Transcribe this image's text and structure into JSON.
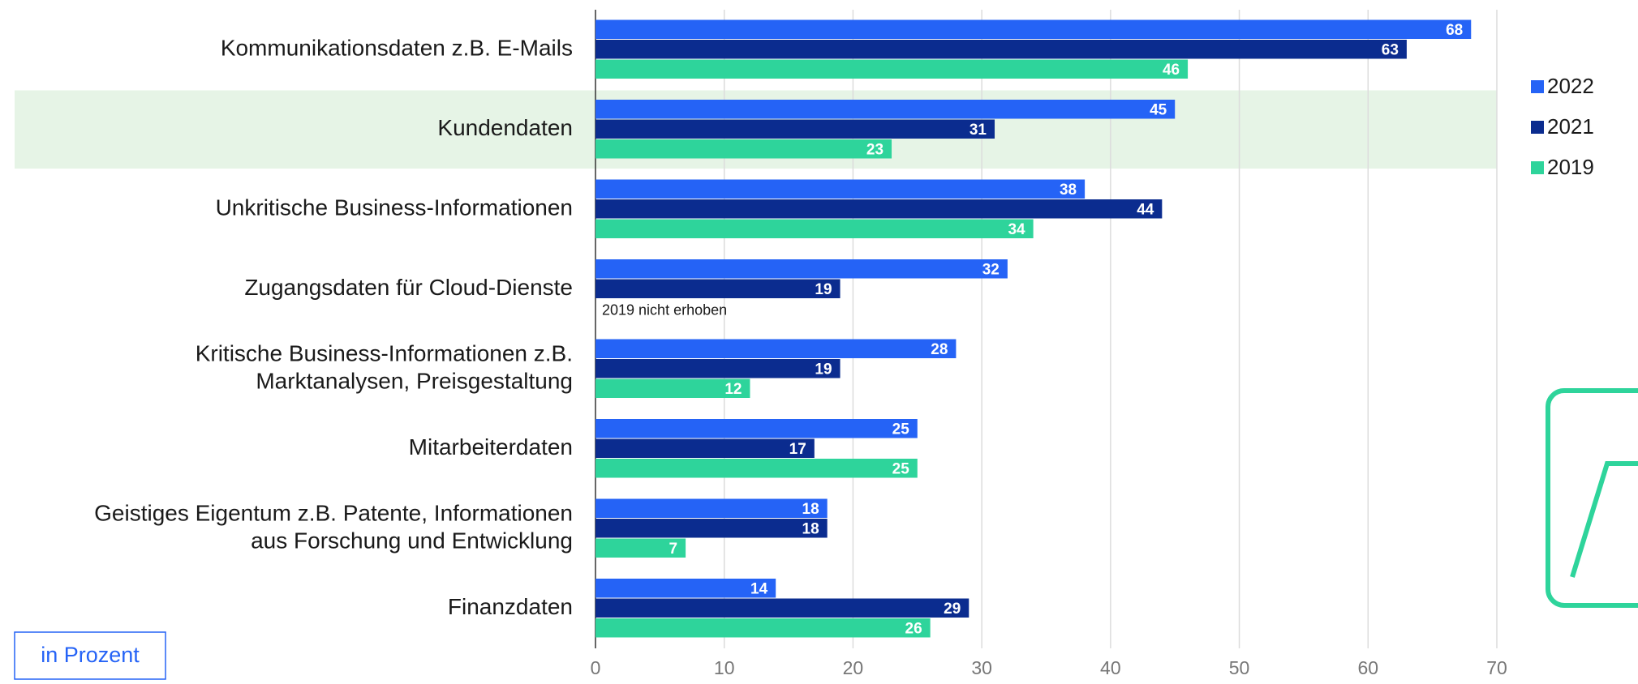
{
  "chart_data": {
    "type": "hbar",
    "categories": [
      "Kommunikationsdaten z.B. E-Mails",
      "Kundendaten",
      "Unkritische Business-Informationen",
      "Zugangsdaten für Cloud-Dienste",
      "Kritische Business-Informationen z.B.\nMarktanalysen, Preisgestaltung",
      "Mitarbeiterdaten",
      "Geistiges Eigentum z.B. Patente, Informationen\naus Forschung und Entwicklung",
      "Finanzdaten"
    ],
    "series": [
      {
        "name": "2022",
        "color": "#2563f6",
        "values": [
          68,
          45,
          38,
          32,
          28,
          25,
          18,
          14
        ]
      },
      {
        "name": "2021",
        "color": "#0b2c8f",
        "values": [
          63,
          31,
          44,
          19,
          19,
          17,
          18,
          29
        ]
      },
      {
        "name": "2019",
        "color": "#2ed49b",
        "values": [
          46,
          23,
          34,
          null,
          12,
          25,
          7,
          26
        ]
      }
    ],
    "annotations": [
      {
        "text": "2019 nicht erhoben",
        "category_index": 3
      }
    ],
    "unit_label": "in Prozent",
    "highlight_index": 1,
    "xlim": [
      0,
      70
    ],
    "xticks": [
      0,
      10,
      20,
      30,
      40,
      50,
      60,
      70
    ],
    "grid": true,
    "legend": "right"
  }
}
